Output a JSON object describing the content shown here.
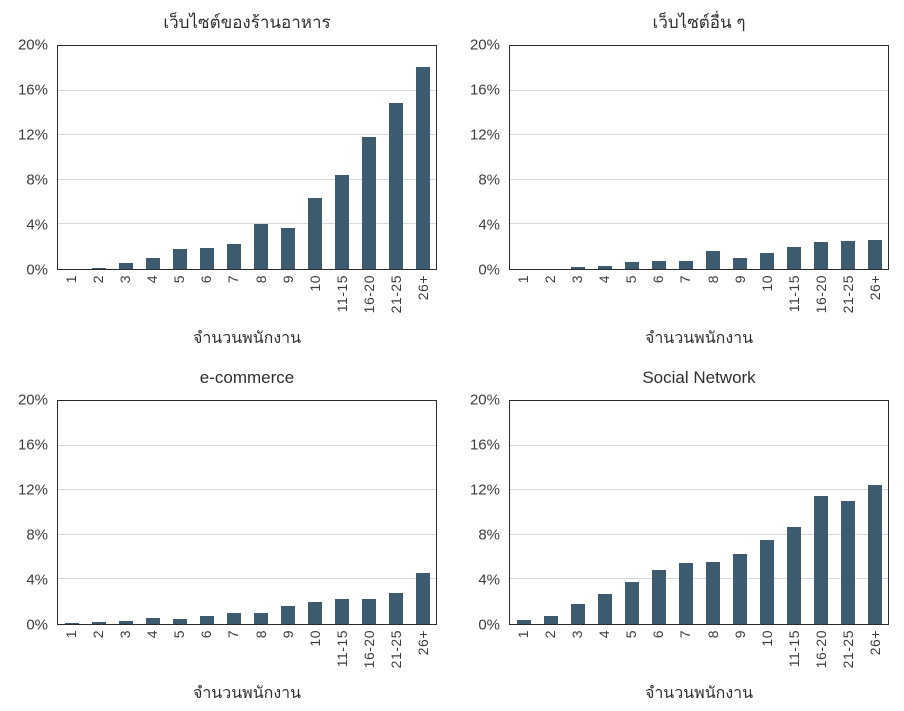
{
  "colors": {
    "bar": "#3d5b70",
    "gridline": "#d9d9d9",
    "plot_border": "#2b2b2b",
    "text": "#3d3d3d"
  },
  "axis": {
    "y_ticks": [
      "20%",
      "16%",
      "12%",
      "8%",
      "4%",
      "0%"
    ],
    "x_label": "จำนวนพนักงาน",
    "y_max": 20
  },
  "chart_data": [
    {
      "type": "bar",
      "title": "เว็บไซต์ของร้านอาหาร",
      "xlabel": "จำนวนพนักงาน",
      "ylabel": "",
      "ylim": [
        0,
        20
      ],
      "grid": true,
      "categories": [
        "1",
        "2",
        "3",
        "4",
        "5",
        "6",
        "7",
        "8",
        "9",
        "10",
        "11-15",
        "16-20",
        "21-25",
        "26+"
      ],
      "values": [
        0,
        0.1,
        0.5,
        1.0,
        1.8,
        1.9,
        2.2,
        4.0,
        3.7,
        6.4,
        8.4,
        11.8,
        14.9,
        18.1
      ]
    },
    {
      "type": "bar",
      "title": "เว็บไซต์อื่น ๆ",
      "xlabel": "จำนวนพนักงาน",
      "ylabel": "",
      "ylim": [
        0,
        20
      ],
      "grid": true,
      "categories": [
        "1",
        "2",
        "3",
        "4",
        "5",
        "6",
        "7",
        "8",
        "9",
        "10",
        "11-15",
        "16-20",
        "21-25",
        "26+"
      ],
      "values": [
        0,
        0,
        0.2,
        0.3,
        0.6,
        0.7,
        0.7,
        1.6,
        1.0,
        1.4,
        2.0,
        2.4,
        2.5,
        2.6
      ]
    },
    {
      "type": "bar",
      "title": "e-commerce",
      "xlabel": "จำนวนพนักงาน",
      "ylabel": "",
      "ylim": [
        0,
        20
      ],
      "grid": true,
      "categories": [
        "1",
        "2",
        "3",
        "4",
        "5",
        "6",
        "7",
        "8",
        "9",
        "10",
        "11-15",
        "16-20",
        "21-25",
        "26+"
      ],
      "values": [
        0.05,
        0.2,
        0.3,
        0.5,
        0.45,
        0.7,
        1.0,
        1.0,
        1.6,
        2.0,
        2.2,
        2.2,
        2.8,
        4.6
      ]
    },
    {
      "type": "bar",
      "title": "Social Network",
      "xlabel": "จำนวนพนักงาน",
      "ylabel": "",
      "ylim": [
        0,
        20
      ],
      "grid": true,
      "categories": [
        "1",
        "2",
        "3",
        "4",
        "5",
        "6",
        "7",
        "8",
        "9",
        "10",
        "11-15",
        "16-20",
        "21-25",
        "26+"
      ],
      "values": [
        0.35,
        0.7,
        1.8,
        2.7,
        3.8,
        4.8,
        5.5,
        5.6,
        6.3,
        7.5,
        8.7,
        11.5,
        11.0,
        12.5
      ]
    }
  ]
}
